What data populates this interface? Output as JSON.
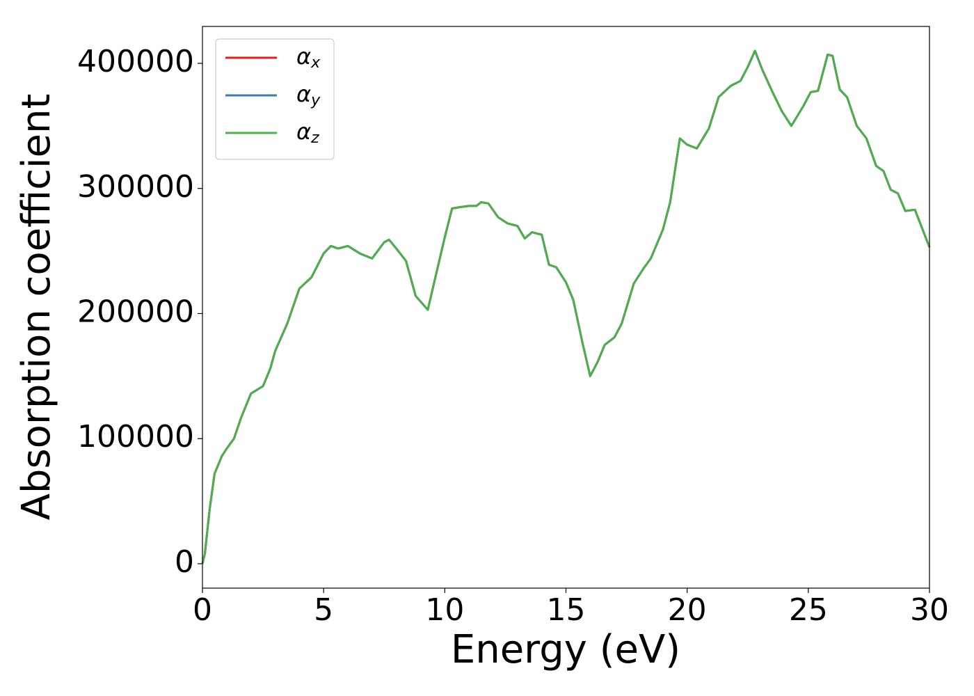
{
  "chart_data": {
    "type": "line",
    "xlabel": "Energy (eV)",
    "ylabel": "Absorption coefficient",
    "x": [
      0,
      0.1,
      0.3,
      0.5,
      0.8,
      1.0,
      1.3,
      1.6,
      2.0,
      2.5,
      2.8,
      3.0,
      3.5,
      4.0,
      4.5,
      5.0,
      5.3,
      5.6,
      6.0,
      6.5,
      7.0,
      7.5,
      7.7,
      8.0,
      8.4,
      8.8,
      9.3,
      9.6,
      10.0,
      10.3,
      10.6,
      11.0,
      11.3,
      11.5,
      11.8,
      12.2,
      12.6,
      13.0,
      13.3,
      13.6,
      14.0,
      14.3,
      14.6,
      15.0,
      15.3,
      15.7,
      16.0,
      16.3,
      16.6,
      17.0,
      17.3,
      17.8,
      18.2,
      18.5,
      19.0,
      19.3,
      19.7,
      20.0,
      20.4,
      20.9,
      21.3,
      21.8,
      22.2,
      22.5,
      22.8,
      23.1,
      23.5,
      23.9,
      24.3,
      24.8,
      25.1,
      25.4,
      25.8,
      26.0,
      26.3,
      26.6,
      27.0,
      27.4,
      27.8,
      28.1,
      28.4,
      28.7,
      29.0,
      29.4,
      30.0
    ],
    "series": [
      {
        "name": "αx",
        "color": "#e41a1c",
        "values": [
          0,
          8000,
          44000,
          72000,
          86000,
          92000,
          100000,
          117000,
          136000,
          142000,
          156000,
          170000,
          192000,
          220000,
          229000,
          248000,
          254000,
          252000,
          254000,
          248000,
          244000,
          257000,
          259000,
          252000,
          242000,
          214000,
          203000,
          228000,
          261000,
          284000,
          285000,
          286000,
          286000,
          289000,
          288000,
          277000,
          272000,
          270000,
          260000,
          265000,
          263000,
          239000,
          237000,
          225000,
          211000,
          175000,
          150000,
          161000,
          175000,
          181000,
          192000,
          224000,
          236000,
          244000,
          267000,
          289000,
          340000,
          335000,
          332000,
          348000,
          373000,
          382000,
          386000,
          397000,
          410000,
          395000,
          378000,
          362000,
          350000,
          366000,
          377000,
          378000,
          407000,
          406000,
          379000,
          373000,
          350000,
          340000,
          318000,
          314000,
          299000,
          296000,
          282000,
          283000,
          253000
        ]
      },
      {
        "name": "αy",
        "color": "#377eb8",
        "values": [
          0,
          8000,
          44000,
          72000,
          86000,
          92000,
          100000,
          117000,
          136000,
          142000,
          156000,
          170000,
          192000,
          220000,
          229000,
          248000,
          254000,
          252000,
          254000,
          248000,
          244000,
          257000,
          259000,
          252000,
          242000,
          214000,
          203000,
          228000,
          261000,
          284000,
          285000,
          286000,
          286000,
          289000,
          288000,
          277000,
          272000,
          270000,
          260000,
          265000,
          263000,
          239000,
          237000,
          225000,
          211000,
          175000,
          150000,
          161000,
          175000,
          181000,
          192000,
          224000,
          236000,
          244000,
          267000,
          289000,
          340000,
          335000,
          332000,
          348000,
          373000,
          382000,
          386000,
          397000,
          410000,
          395000,
          378000,
          362000,
          350000,
          366000,
          377000,
          378000,
          407000,
          406000,
          379000,
          373000,
          350000,
          340000,
          318000,
          314000,
          299000,
          296000,
          282000,
          283000,
          253000
        ]
      },
      {
        "name": "αz",
        "color": "#4daf4a",
        "values": [
          0,
          8000,
          44000,
          72000,
          86000,
          92000,
          100000,
          117000,
          136000,
          142000,
          156000,
          170000,
          192000,
          220000,
          229000,
          248000,
          254000,
          252000,
          254000,
          248000,
          244000,
          257000,
          259000,
          252000,
          242000,
          214000,
          203000,
          228000,
          261000,
          284000,
          285000,
          286000,
          286000,
          289000,
          288000,
          277000,
          272000,
          270000,
          260000,
          265000,
          263000,
          239000,
          237000,
          225000,
          211000,
          175000,
          150000,
          161000,
          175000,
          181000,
          192000,
          224000,
          236000,
          244000,
          267000,
          289000,
          340000,
          335000,
          332000,
          348000,
          373000,
          382000,
          386000,
          397000,
          410000,
          395000,
          378000,
          362000,
          350000,
          366000,
          377000,
          378000,
          407000,
          406000,
          379000,
          373000,
          350000,
          340000,
          318000,
          314000,
          299000,
          296000,
          282000,
          283000,
          253000
        ]
      }
    ],
    "xlim": [
      0,
      30
    ],
    "xticks": [
      0,
      5,
      10,
      15,
      20,
      25,
      30
    ],
    "ylim": [
      -19500,
      429500
    ],
    "yticks": [
      0,
      100000,
      200000,
      300000,
      400000
    ],
    "legend": "upper left"
  }
}
